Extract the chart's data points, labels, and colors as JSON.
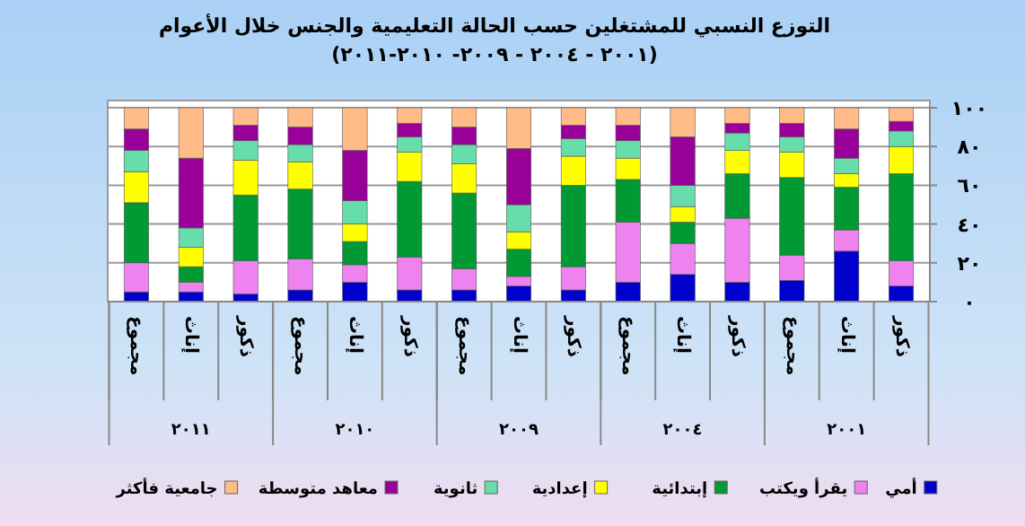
{
  "chart_data": {
    "type": "bar",
    "stacked": true,
    "title": "التوزع النسبي للمشتغلين حسب الحالة التعليمية والجنس خلال الأعوام",
    "subtitle": "(٢٠٠١ - ٢٠٠٤ - ٢٠٠٩- ٢٠١٠-٢٠١١)",
    "categories": [
      "مجموع",
      "إناث",
      "ذكور",
      "مجموع",
      "إناث",
      "ذكور",
      "مجموع",
      "إناث",
      "ذكور",
      "مجموع",
      "إناث",
      "ذكور",
      "مجموع",
      "إناث",
      "ذكور"
    ],
    "annotations": [
      "٢٠١١",
      "٢٠١٠",
      "٢٠٠٩",
      "٢٠٠٤",
      "٢٠٠١"
    ],
    "series": [
      {
        "name": "أمي",
        "color": "#0000cc",
        "values": [
          5,
          5,
          4,
          6,
          10,
          6,
          6,
          8,
          6,
          10,
          14,
          10,
          11,
          26,
          8
        ]
      },
      {
        "name": "يقرأ ويكتب",
        "color": "#ee82ee",
        "values": [
          15,
          5,
          17,
          16,
          9,
          17,
          11,
          5,
          12,
          31,
          16,
          33,
          13,
          11,
          13
        ]
      },
      {
        "name": "إبتدائية",
        "color": "#009933",
        "values": [
          31,
          8,
          34,
          36,
          12,
          39,
          39,
          14,
          42,
          22,
          11,
          23,
          40,
          22,
          45
        ]
      },
      {
        "name": "إعدادية",
        "color": "#ffff00",
        "values": [
          16,
          10,
          18,
          14,
          9,
          15,
          15,
          9,
          15,
          11,
          8,
          12,
          13,
          7,
          14
        ]
      },
      {
        "name": "ثانوية",
        "color": "#66ddaa",
        "values": [
          11,
          10,
          10,
          9,
          12,
          8,
          10,
          14,
          9,
          9,
          11,
          9,
          8,
          8,
          8
        ]
      },
      {
        "name": "معاهد متوسطة",
        "color": "#990099",
        "values": [
          11,
          36,
          8,
          9,
          26,
          7,
          9,
          29,
          7,
          8,
          25,
          5,
          7,
          15,
          5
        ]
      },
      {
        "name": "جامعية فأكثر",
        "color": "#ffbb88",
        "values": [
          11,
          26,
          9,
          10,
          22,
          8,
          10,
          21,
          9,
          9,
          15,
          8,
          8,
          11,
          7
        ]
      }
    ],
    "ylim": [
      0,
      100
    ],
    "yticks": [
      {
        "value": 0,
        "label": "٠"
      },
      {
        "value": 20,
        "label": "٢٠"
      },
      {
        "value": 40,
        "label": "٤٠"
      },
      {
        "value": 60,
        "label": "٦٠"
      },
      {
        "value": 80,
        "label": "٨٠"
      },
      {
        "value": 100,
        "label": "١٠٠"
      }
    ],
    "grid": "y",
    "legend": "bottom"
  }
}
